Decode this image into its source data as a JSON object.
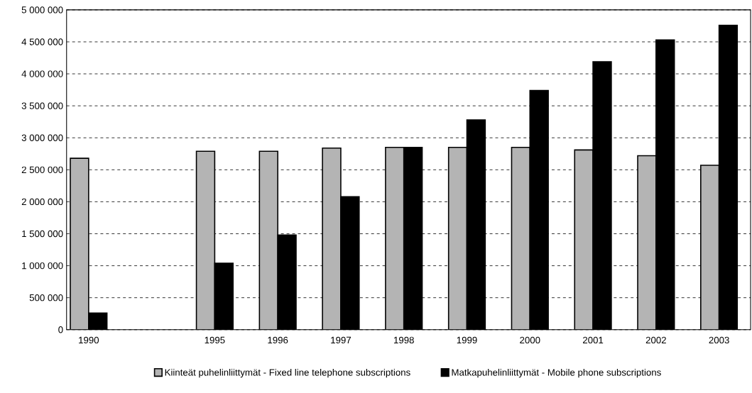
{
  "chart_data": {
    "type": "bar",
    "categories": [
      "1990",
      null,
      "1995",
      "1996",
      "1997",
      "1998",
      "1999",
      "2000",
      "2001",
      "2002",
      "2003"
    ],
    "series": [
      {
        "name": "Kiinteät puhelinliittymät - Fixed line telephone subscriptions",
        "color": "#b4b4b4",
        "values": [
          2680000,
          null,
          2790000,
          2790000,
          2840000,
          2850000,
          2850000,
          2850000,
          2810000,
          2720000,
          2570000
        ]
      },
      {
        "name": "Matkapuhelinliittymät - Mobile phone subscriptions",
        "color": "#000000",
        "values": [
          260000,
          null,
          1040000,
          1480000,
          2080000,
          2850000,
          3280000,
          3740000,
          4190000,
          4530000,
          4760000
        ]
      }
    ],
    "ylim": [
      0,
      5000000
    ],
    "yticks": [
      0,
      {
        "value": 500000,
        "label": "500 000"
      },
      {
        "value": 1000000,
        "label": "1 000 000"
      },
      {
        "value": 1500000,
        "label": "1 500 000"
      },
      {
        "value": 2000000,
        "label": "2 000 000"
      },
      {
        "value": 2500000,
        "label": "2 500 000"
      },
      {
        "value": 3000000,
        "label": "3 000 000"
      },
      {
        "value": 3500000,
        "label": "3 500 000"
      },
      {
        "value": 4000000,
        "label": "4 000 000"
      },
      {
        "value": 4500000,
        "label": "4 500 000"
      },
      {
        "value": 5000000,
        "label": "5 000 000"
      }
    ],
    "grid": "y",
    "legend": "bottom"
  }
}
